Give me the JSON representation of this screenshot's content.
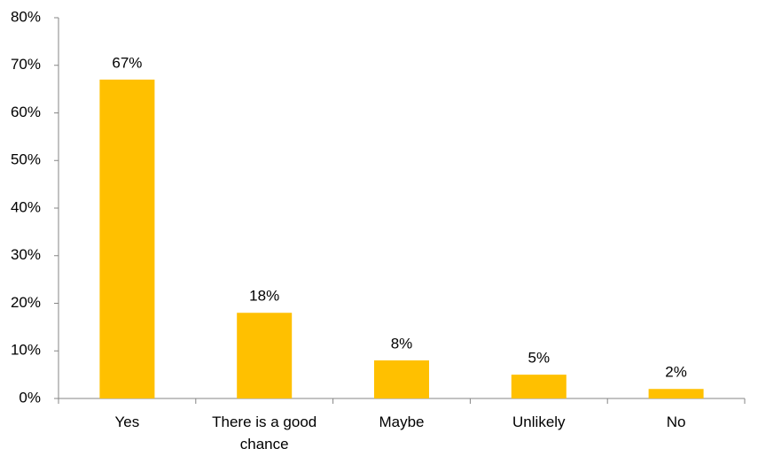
{
  "chart_data": {
    "type": "bar",
    "categories": [
      "Yes",
      "There is a good chance",
      "Maybe",
      "Unlikely",
      "No"
    ],
    "values": [
      67,
      18,
      8,
      5,
      2
    ],
    "value_labels": [
      "67%",
      "18%",
      "8%",
      "5%",
      "2%"
    ],
    "color": "#ffc000",
    "ylim": [
      0,
      80
    ],
    "yticks": [
      {
        "value": 0,
        "label": "0%"
      },
      {
        "value": 10,
        "label": "10%"
      },
      {
        "value": 20,
        "label": "20%"
      },
      {
        "value": 30,
        "label": "30%"
      },
      {
        "value": 40,
        "label": "40%"
      },
      {
        "value": 50,
        "label": "50%"
      },
      {
        "value": 60,
        "label": "60%"
      },
      {
        "value": 70,
        "label": "70%"
      },
      {
        "value": 80,
        "label": "80%"
      }
    ],
    "grid": false
  }
}
